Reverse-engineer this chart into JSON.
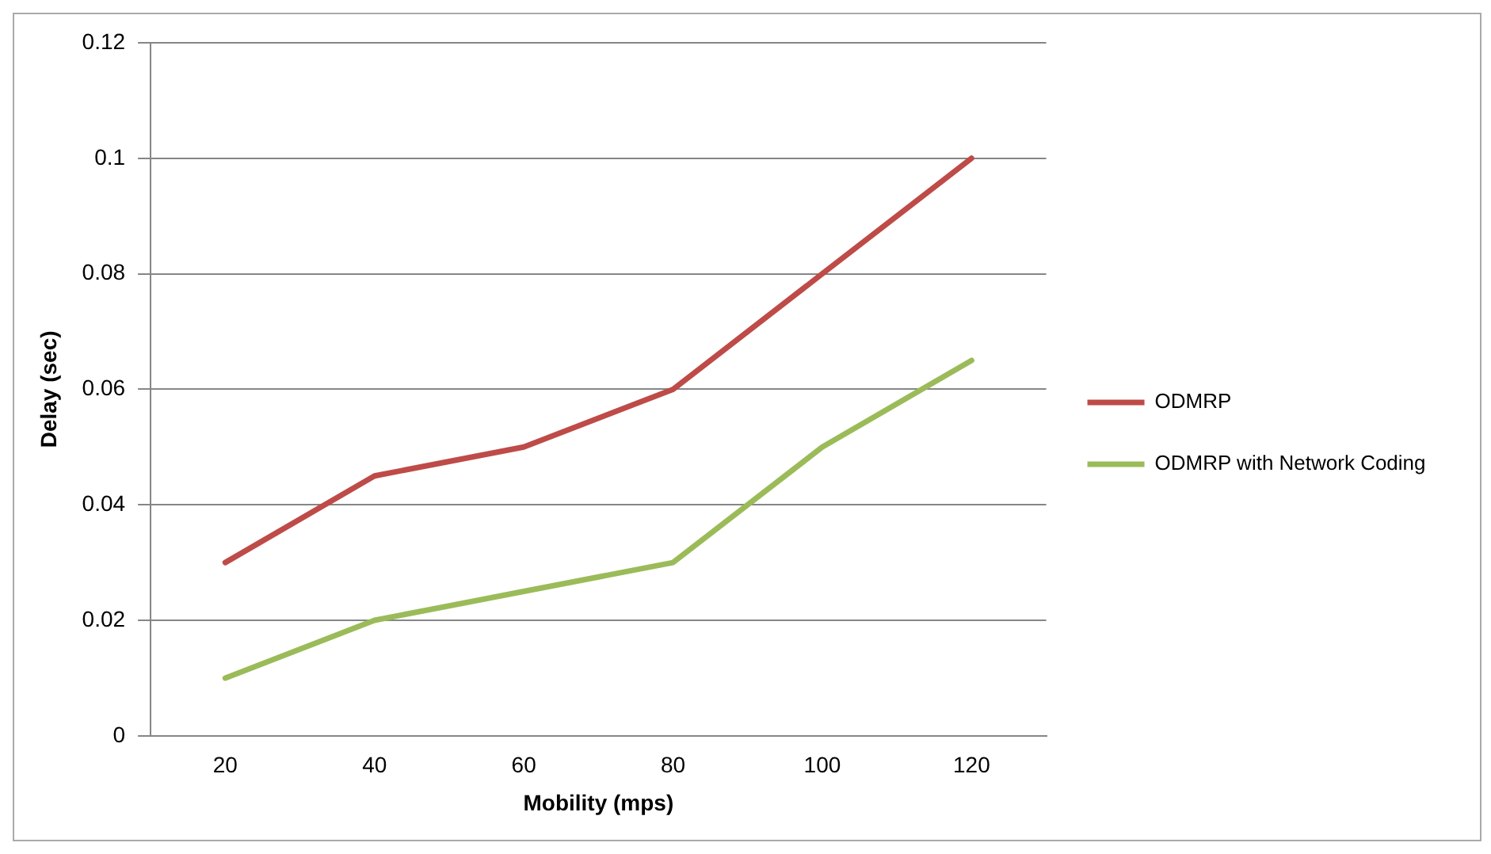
{
  "chart_data": {
    "type": "line",
    "xlabel": "Mobility (mps)",
    "ylabel": "Delay (sec)",
    "categories": [
      "20",
      "40",
      "60",
      "80",
      "100",
      "120"
    ],
    "series": [
      {
        "name": "ODMRP",
        "color": "#be4b48",
        "values": [
          0.03,
          0.045,
          0.05,
          0.06,
          0.08,
          0.1
        ]
      },
      {
        "name": "ODMRP with Network Coding",
        "color": "#9bbb59",
        "values": [
          0.01,
          0.02,
          0.025,
          0.03,
          0.05,
          0.065
        ]
      }
    ],
    "ylim": [
      0,
      0.12
    ],
    "yticks": [
      0,
      0.02,
      0.04,
      0.06,
      0.08,
      0.1,
      0.12
    ],
    "grid": "y",
    "legend": "right",
    "marker": "none",
    "line_style": "solid"
  }
}
